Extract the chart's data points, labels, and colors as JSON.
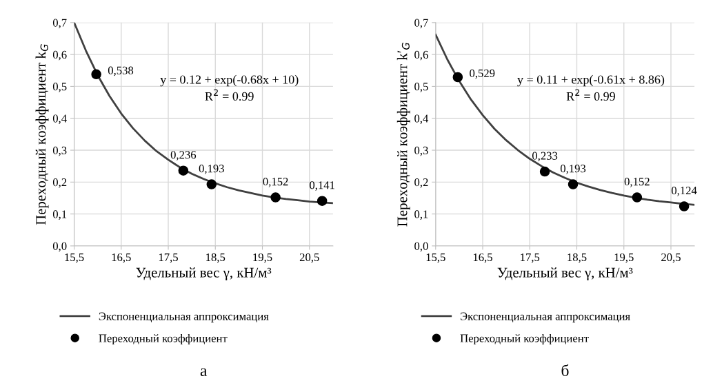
{
  "chart_data": [
    {
      "type": "scatter",
      "xlabel": "Удельный вес γ, кН/м³",
      "ylabel": "Переходный коэффициент k$_{G}$",
      "xlim": [
        15.5,
        21.0
      ],
      "xticks": [
        {
          "value": 15.5,
          "label": "15,5"
        },
        {
          "value": 16.5,
          "label": "16,5"
        },
        {
          "value": 17.5,
          "label": "17,5"
        },
        {
          "value": 18.5,
          "label": "18,5"
        },
        {
          "value": 19.5,
          "label": "19,5"
        },
        {
          "value": 20.5,
          "label": "20,5"
        }
      ],
      "ylim": [
        0,
        0.7
      ],
      "yticks": [
        {
          "value": 0,
          "label": "0,0"
        },
        {
          "value": 0.1,
          "label": "0,1"
        },
        {
          "value": 0.2,
          "label": "0,2"
        },
        {
          "value": 0.3,
          "label": "0,3"
        },
        {
          "value": 0.4,
          "label": "0,4"
        },
        {
          "value": 0.5,
          "label": "0,5"
        },
        {
          "value": 0.6,
          "label": "0,6"
        },
        {
          "value": 0.7,
          "label": "0,7"
        }
      ],
      "grid": true,
      "legend": "bottom",
      "series": [
        {
          "name": "Экспоненциальная аппроксимация",
          "type": "line",
          "color": "#404040",
          "marker": "none",
          "x": [
            15.5,
            15.75,
            16.0,
            16.25,
            16.5,
            16.75,
            17.0,
            17.25,
            17.5,
            17.75,
            18.0,
            18.25,
            18.5,
            18.75,
            19.0,
            19.25,
            19.5,
            19.75,
            20.0,
            20.25,
            20.5,
            20.75,
            21.0
          ],
          "values": [
            0.7,
            0.612,
            0.535,
            0.47,
            0.415,
            0.369,
            0.33,
            0.297,
            0.27,
            0.246,
            0.226,
            0.21,
            0.196,
            0.184,
            0.174,
            0.166,
            0.158,
            0.152,
            0.147,
            0.143,
            0.139,
            0.136,
            0.134
          ]
        },
        {
          "name": "Переходный коэффициент",
          "color": "#000000",
          "marker": "circle",
          "x": [
            15.97,
            17.82,
            18.42,
            19.78,
            20.77
          ],
          "values": [
            0.538,
            0.236,
            0.193,
            0.152,
            0.141
          ],
          "value_labels": [
            "0,538",
            "0,236",
            "0,193",
            "0,152",
            "0,141"
          ]
        }
      ],
      "annotations": [
        "y = 0.12 + exp(-0.68x + 10)",
        "R$^{2}$ = 0.99",
        "а"
      ]
    },
    {
      "type": "scatter",
      "xlabel": "Удельный вес γ, кН/м³",
      "ylabel": "Переходный коэффициент k′$_{G}$",
      "xlim": [
        15.5,
        21.0
      ],
      "xticks": [
        {
          "value": 15.5,
          "label": "15,5"
        },
        {
          "value": 16.5,
          "label": "16,5"
        },
        {
          "value": 17.5,
          "label": "17,5"
        },
        {
          "value": 18.5,
          "label": "18,5"
        },
        {
          "value": 19.5,
          "label": "19,5"
        },
        {
          "value": 20.5,
          "label": "20,5"
        }
      ],
      "ylim": [
        0,
        0.7
      ],
      "yticks": [
        {
          "value": 0,
          "label": "0,0"
        },
        {
          "value": 0.1,
          "label": "0,1"
        },
        {
          "value": 0.2,
          "label": "0,2"
        },
        {
          "value": 0.3,
          "label": "0,3"
        },
        {
          "value": 0.4,
          "label": "0,4"
        },
        {
          "value": 0.5,
          "label": "0,5"
        },
        {
          "value": 0.6,
          "label": "0,6"
        },
        {
          "value": 0.7,
          "label": "0,7"
        }
      ],
      "grid": true,
      "legend": "bottom",
      "series": [
        {
          "name": "Экспоненциальная аппроксимация",
          "type": "line",
          "color": "#404040",
          "marker": "none",
          "x": [
            15.5,
            15.75,
            16.0,
            16.25,
            16.5,
            16.75,
            17.0,
            17.25,
            17.5,
            17.75,
            18.0,
            18.25,
            18.5,
            18.75,
            19.0,
            19.25,
            19.5,
            19.75,
            20.0,
            20.25,
            20.5,
            20.75,
            21.0
          ],
          "values": [
            0.662,
            0.584,
            0.517,
            0.459,
            0.41,
            0.367,
            0.331,
            0.3,
            0.273,
            0.25,
            0.23,
            0.213,
            0.198,
            0.186,
            0.175,
            0.166,
            0.158,
            0.151,
            0.145,
            0.14,
            0.136,
            0.132,
            0.129
          ]
        },
        {
          "name": "Переходный коэффициент",
          "color": "#000000",
          "marker": "circle",
          "x": [
            15.97,
            17.82,
            18.42,
            19.78,
            20.78
          ],
          "values": [
            0.529,
            0.233,
            0.193,
            0.152,
            0.124
          ],
          "value_labels": [
            "0,529",
            "0,233",
            "0,193",
            "0,152",
            "0,124"
          ]
        }
      ],
      "annotations": [
        "y = 0.11 + exp(-0.61x + 8.86)",
        "R$^{2}$ = 0.99",
        "б"
      ]
    }
  ]
}
